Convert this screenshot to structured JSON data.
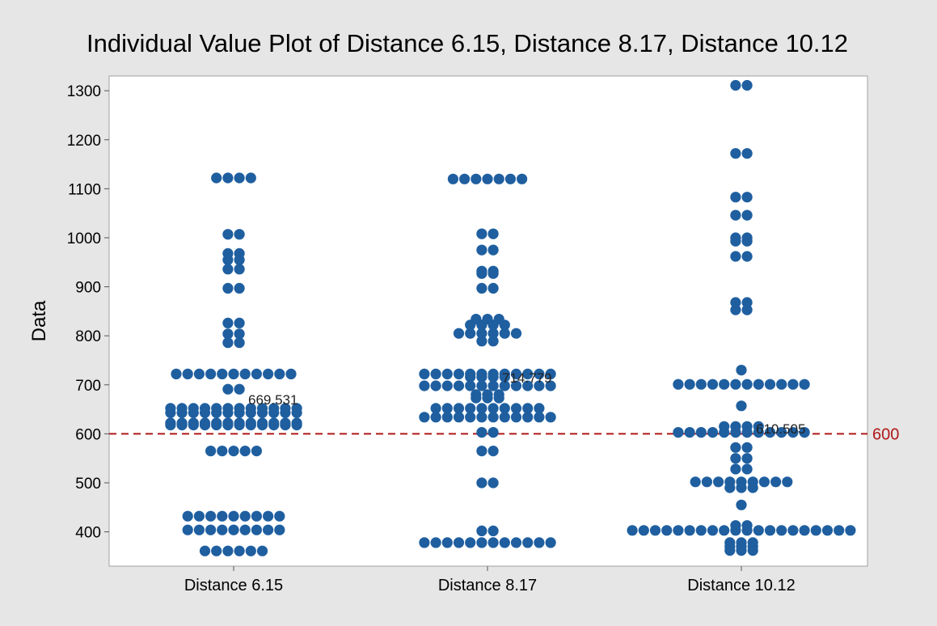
{
  "chart_data": {
    "type": "scatter",
    "subtype": "individual-value-plot",
    "title": "Individual Value Plot of Distance 6.15, Distance 8.17, Distance 10.12",
    "xlabel": "",
    "ylabel": "Data",
    "ylim": [
      330,
      1330
    ],
    "yticks": [
      400,
      500,
      600,
      700,
      800,
      900,
      1000,
      1100,
      1200,
      1300
    ],
    "grid": false,
    "legend": "none",
    "colors": {
      "marker": "#1f5fa0",
      "reference": "#b01818",
      "background": "#e6e6e6",
      "plot_area": "#ffffff"
    },
    "categories": [
      "Distance 6.15",
      "Distance 8.17",
      "Distance 10.12"
    ],
    "series": [
      {
        "points": [
          [
            1122,
            4
          ],
          [
            1007,
            2
          ],
          [
            968,
            2
          ],
          [
            955,
            2
          ],
          [
            936,
            2
          ],
          [
            897,
            2
          ],
          [
            826,
            2
          ],
          [
            804,
            2
          ],
          [
            786,
            2
          ],
          [
            722,
            11
          ],
          [
            691,
            2
          ],
          [
            652,
            12
          ],
          [
            643,
            12
          ],
          [
            622,
            12
          ],
          [
            618,
            12
          ],
          [
            565,
            5
          ],
          [
            432,
            9
          ],
          [
            404,
            9
          ],
          [
            361,
            6
          ]
        ],
        "mean": 669.531,
        "mean_label": "669.531"
      },
      {
        "points": [
          [
            1120,
            7
          ],
          [
            1008,
            2
          ],
          [
            975,
            2
          ],
          [
            932,
            2
          ],
          [
            927,
            2
          ],
          [
            897,
            2
          ],
          [
            834,
            3
          ],
          [
            822,
            4
          ],
          [
            805,
            6
          ],
          [
            789,
            2
          ],
          [
            722,
            12
          ],
          [
            716,
            4
          ],
          [
            698,
            12
          ],
          [
            680,
            3
          ],
          [
            673,
            3
          ],
          [
            652,
            10
          ],
          [
            634,
            12
          ],
          [
            603,
            2
          ],
          [
            565,
            2
          ],
          [
            500,
            2
          ],
          [
            402,
            2
          ],
          [
            378,
            12
          ]
        ],
        "mean": 714.779,
        "mean_label": "714.779"
      },
      {
        "points": [
          [
            1311,
            2
          ],
          [
            1172,
            2
          ],
          [
            1083,
            2
          ],
          [
            1046,
            2
          ],
          [
            1000,
            2
          ],
          [
            993,
            2
          ],
          [
            962,
            2
          ],
          [
            868,
            2
          ],
          [
            853,
            2
          ],
          [
            730,
            1
          ],
          [
            701,
            12
          ],
          [
            657,
            1
          ],
          [
            615,
            4
          ],
          [
            603,
            12
          ],
          [
            572,
            2
          ],
          [
            550,
            2
          ],
          [
            528,
            2
          ],
          [
            502,
            9
          ],
          [
            490,
            3
          ],
          [
            455,
            1
          ],
          [
            413,
            2
          ],
          [
            403,
            20
          ],
          [
            378,
            3
          ],
          [
            370,
            3
          ],
          [
            362,
            3
          ]
        ],
        "mean": 610.505,
        "mean_label": "610.505"
      }
    ],
    "reference_line": {
      "value": 600,
      "label": "600",
      "style": "dashed"
    }
  }
}
